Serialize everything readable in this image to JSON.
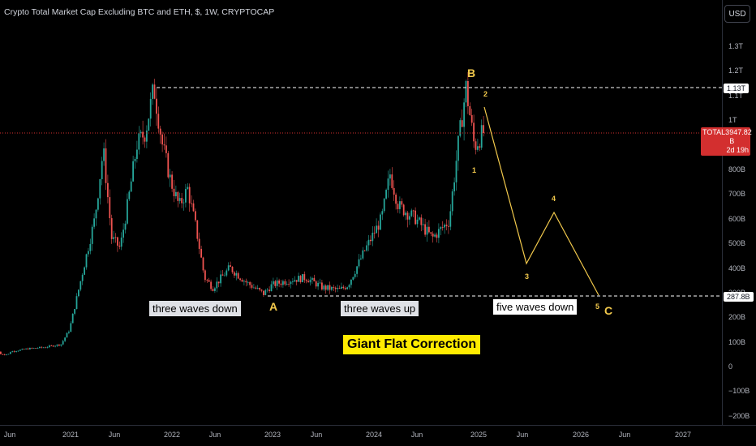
{
  "title": "Crypto Total Market Cap Excluding BTC and ETH, $, 1W, CRYPTOCAP",
  "currency_button": "USD",
  "colors": {
    "up": "#26a69a",
    "down": "#ef5350",
    "wave": "#f2c94c",
    "grid": "#2a2e39"
  },
  "price_tag": {
    "symbol": "TOTAL3",
    "value": "947.82 B",
    "countdown": "2d 19h"
  },
  "level_tags": {
    "top": "1.13T",
    "bottom": "287.8B"
  },
  "labels": {
    "three_down": "three waves down",
    "three_up": "three waves up",
    "five_down": "five waves down",
    "giant": "Giant Flat Correction"
  },
  "waves": {
    "A": "A",
    "B": "B",
    "C": "C",
    "w1": "1",
    "w2": "2",
    "w3": "3",
    "w4": "4",
    "w5": "5"
  },
  "y_ticks": [
    "1.3T",
    "1.2T",
    "1.1T",
    "1T",
    "800B",
    "700B",
    "600B",
    "500B",
    "400B",
    "300B",
    "200B",
    "100B",
    "0",
    "−100B",
    "−200B"
  ],
  "x_ticks": [
    "Jun",
    "2021",
    "Jun",
    "2022",
    "Jun",
    "2023",
    "Jun",
    "2024",
    "Jun",
    "2025",
    "Jun",
    "2026",
    "Jun",
    "2027"
  ],
  "chart_data": {
    "type": "candlestick",
    "symbol": "TOTAL3",
    "interval": "1W",
    "unit": "USD",
    "ylim": [
      -200,
      1300
    ],
    "y_unit": "B",
    "last_price": "947.82 B",
    "levels": [
      1130,
      287.8
    ],
    "x_range": [
      "2020-06",
      "2027-06"
    ],
    "close_series": [
      [
        "2020-06",
        60
      ],
      [
        "2020-08",
        72
      ],
      [
        "2020-10",
        78
      ],
      [
        "2020-12",
        90
      ],
      [
        "2021-01",
        150
      ],
      [
        "2021-02",
        300
      ],
      [
        "2021-04",
        600
      ],
      [
        "2021-05",
        880
      ],
      [
        "2021-06",
        520
      ],
      [
        "2021-07",
        480
      ],
      [
        "2021-08",
        680
      ],
      [
        "2021-09",
        900
      ],
      [
        "2021-10",
        950
      ],
      [
        "2021-11",
        1130
      ],
      [
        "2021-12",
        900
      ],
      [
        "2022-01",
        750
      ],
      [
        "2022-02",
        650
      ],
      [
        "2022-03",
        720
      ],
      [
        "2022-04",
        560
      ],
      [
        "2022-05",
        360
      ],
      [
        "2022-06",
        320
      ],
      [
        "2022-08",
        400
      ],
      [
        "2022-10",
        340
      ],
      [
        "2022-12",
        295
      ],
      [
        "2023-01",
        330
      ],
      [
        "2023-03",
        350
      ],
      [
        "2023-05",
        360
      ],
      [
        "2023-07",
        320
      ],
      [
        "2023-09",
        310
      ],
      [
        "2023-10",
        330
      ],
      [
        "2023-12",
        470
      ],
      [
        "2024-02",
        600
      ],
      [
        "2024-03",
        780
      ],
      [
        "2024-04",
        650
      ],
      [
        "2024-06",
        600
      ],
      [
        "2024-08",
        520
      ],
      [
        "2024-10",
        590
      ],
      [
        "2024-11",
        880
      ],
      [
        "2024-12",
        1130
      ],
      [
        "2025-01",
        890
      ],
      [
        "2025-02",
        947.82
      ]
    ],
    "projection": [
      [
        "2024-12",
        1130
      ],
      [
        "2025-01",
        860
      ],
      [
        "2025-02",
        1080
      ],
      [
        "2025-06",
        420
      ],
      [
        "2025-09",
        630
      ],
      [
        "2026-03",
        287.8
      ]
    ],
    "annotations": [
      "three waves down",
      "three waves up",
      "five waves down",
      "Giant Flat Correction"
    ]
  }
}
